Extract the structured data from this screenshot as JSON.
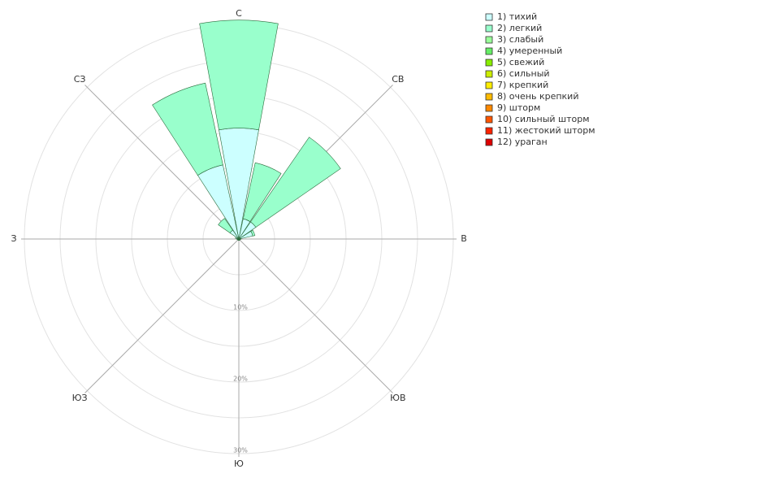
{
  "chart_data": {
    "type": "windrose",
    "categories": [
      "С",
      null,
      "СВ",
      null,
      "В",
      null,
      "ЮВ",
      null,
      "Ю",
      null,
      "ЮЗ",
      null,
      "З",
      null,
      "СЗ",
      null
    ],
    "rlim": [
      0,
      30
    ],
    "rticks": [
      {
        "value": 10,
        "label": "10%"
      },
      {
        "value": 20,
        "label": "20%"
      },
      {
        "value": 30,
        "label": "30%"
      }
    ],
    "minor_rticks": [
      5,
      15,
      25
    ],
    "grid": true,
    "legend": "right",
    "series": [
      {
        "name": "1) тихий",
        "color": "#ccffff",
        "values": [
          15.5,
          2.9,
          2.9,
          2.0,
          0.3,
          0.2,
          0.2,
          0.2,
          0.2,
          0.2,
          0.2,
          0.2,
          0.3,
          0.5,
          1.5,
          10.6
        ]
      },
      {
        "name": "2) легкий",
        "color": "#99ffcc",
        "values": [
          15.1,
          8.0,
          14.4,
          0.3,
          0,
          0,
          0,
          0,
          0,
          0,
          0,
          0,
          0,
          0,
          2.0,
          11.7
        ]
      },
      {
        "name": "3) слабый",
        "color": "#99ff99",
        "values": [
          0,
          0,
          0,
          0,
          0,
          0,
          0,
          0,
          0,
          0,
          0,
          0,
          0,
          0,
          0,
          0
        ]
      },
      {
        "name": "4) умеренный",
        "color": "#66ee66",
        "values": [
          0,
          0,
          0,
          0,
          0,
          0,
          0,
          0,
          0,
          0,
          0,
          0,
          0,
          0,
          0,
          0
        ]
      },
      {
        "name": "5) свежий",
        "color": "#88ee00",
        "values": [
          0,
          0,
          0,
          0,
          0,
          0,
          0,
          0,
          0,
          0,
          0,
          0,
          0,
          0,
          0,
          0
        ]
      },
      {
        "name": "6) сильный",
        "color": "#ccee00",
        "values": [
          0,
          0,
          0,
          0,
          0,
          0,
          0,
          0,
          0,
          0,
          0,
          0,
          0,
          0,
          0,
          0
        ]
      },
      {
        "name": "7) крепкий",
        "color": "#ffee00",
        "values": [
          0,
          0,
          0,
          0,
          0,
          0,
          0,
          0,
          0,
          0,
          0,
          0,
          0,
          0,
          0,
          0
        ]
      },
      {
        "name": "8) очень крепкий",
        "color": "#ffbb00",
        "values": [
          0,
          0,
          0,
          0,
          0,
          0,
          0,
          0,
          0,
          0,
          0,
          0,
          0,
          0,
          0,
          0
        ]
      },
      {
        "name": "9) шторм",
        "color": "#ff8800",
        "values": [
          0,
          0,
          0,
          0,
          0,
          0,
          0,
          0,
          0,
          0,
          0,
          0,
          0,
          0,
          0,
          0
        ]
      },
      {
        "name": "10) сильный шторм",
        "color": "#ff5500",
        "values": [
          0,
          0,
          0,
          0,
          0,
          0,
          0,
          0,
          0,
          0,
          0,
          0,
          0,
          0,
          0,
          0
        ]
      },
      {
        "name": "11) жестокий шторм",
        "color": "#ff2200",
        "values": [
          0,
          0,
          0,
          0,
          0,
          0,
          0,
          0,
          0,
          0,
          0,
          0,
          0,
          0,
          0,
          0
        ]
      },
      {
        "name": "12) ураган",
        "color": "#dd0000",
        "values": [
          0,
          0,
          0,
          0,
          0,
          0,
          0,
          0,
          0,
          0,
          0,
          0,
          0,
          0,
          0,
          0
        ]
      }
    ]
  }
}
